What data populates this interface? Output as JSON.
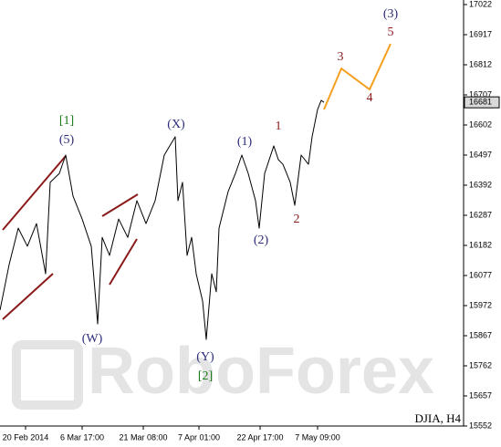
{
  "chart_data": {
    "type": "line",
    "title": "DJIA, H4",
    "watermark": "RoboForex",
    "x": [
      0,
      10,
      20,
      30,
      40,
      50,
      55,
      65,
      72,
      80,
      90,
      100,
      105,
      107,
      112,
      120,
      130,
      140,
      150,
      160,
      170,
      180,
      192,
      195,
      200,
      205,
      210,
      215,
      222,
      226,
      232,
      237,
      240,
      250,
      258,
      265,
      272,
      280,
      284,
      290,
      300,
      305,
      310,
      318,
      323,
      330,
      338,
      342,
      348,
      352,
      355
    ],
    "values": [
      15956,
      16115,
      16242,
      16179,
      16258,
      16083,
      16402,
      16433,
      16497,
      16354,
      16274,
      16179,
      15988,
      15908,
      16210,
      16147,
      16274,
      16210,
      16338,
      16258,
      16338,
      16497,
      16561,
      16338,
      16402,
      16147,
      16210,
      16083,
      15988,
      15854,
      16083,
      16020,
      16242,
      16370,
      16433,
      16497,
      16433,
      16338,
      16242,
      16433,
      16529,
      16481,
      16465,
      16402,
      16322,
      16497,
      16465,
      16561,
      16656,
      16688,
      16681
    ],
    "color": "#000000",
    "forecast": {
      "x": [
        355,
        374,
        405,
        428
      ],
      "values": [
        16656,
        16799,
        16726,
        16885
      ],
      "color": "#f5a020"
    },
    "last_price": 16681,
    "annotations": [
      {
        "text": "[1]",
        "color": "#1a7a1a"
      },
      {
        "text": "(5)",
        "color": "#2b2b7a"
      },
      {
        "text": "(X)",
        "color": "#2b2b7a"
      },
      {
        "text": "(1)",
        "color": "#2b2b7a"
      },
      {
        "text": "1",
        "color": "#8b1a1a"
      },
      {
        "text": "2",
        "color": "#8b1a1a"
      },
      {
        "text": "(2)",
        "color": "#2b2b7a"
      },
      {
        "text": "(W)",
        "color": "#2b2b7a"
      },
      {
        "text": "(Y)",
        "color": "#2b2b7a"
      },
      {
        "text": "[2]",
        "color": "#1a7a1a"
      },
      {
        "text": "3",
        "color": "#8b1a1a"
      },
      {
        "text": "4",
        "color": "#8b1a1a"
      },
      {
        "text": "5",
        "color": "#8b1a1a"
      },
      {
        "text": "(3)",
        "color": "#2b2b7a"
      }
    ],
    "xlim": [
      0,
      508
    ],
    "xticks": [
      {
        "value": 28,
        "label": "20 Feb 2014"
      },
      {
        "value": 90,
        "label": "6 Mar 17:00"
      },
      {
        "value": 157,
        "label": "21 Mar 08:00"
      },
      {
        "value": 218,
        "label": "7 Apr 01:00"
      },
      {
        "value": 285,
        "label": "22 Apr 17:00"
      },
      {
        "value": 348,
        "label": "7 May 09:00"
      }
    ],
    "ylim": [
      15552,
      17022
    ],
    "yticks": [
      15552,
      15657,
      15762,
      15867,
      15972,
      16077,
      16182,
      16287,
      16392,
      16497,
      16602,
      16707,
      16812,
      16917,
      17022
    ]
  }
}
